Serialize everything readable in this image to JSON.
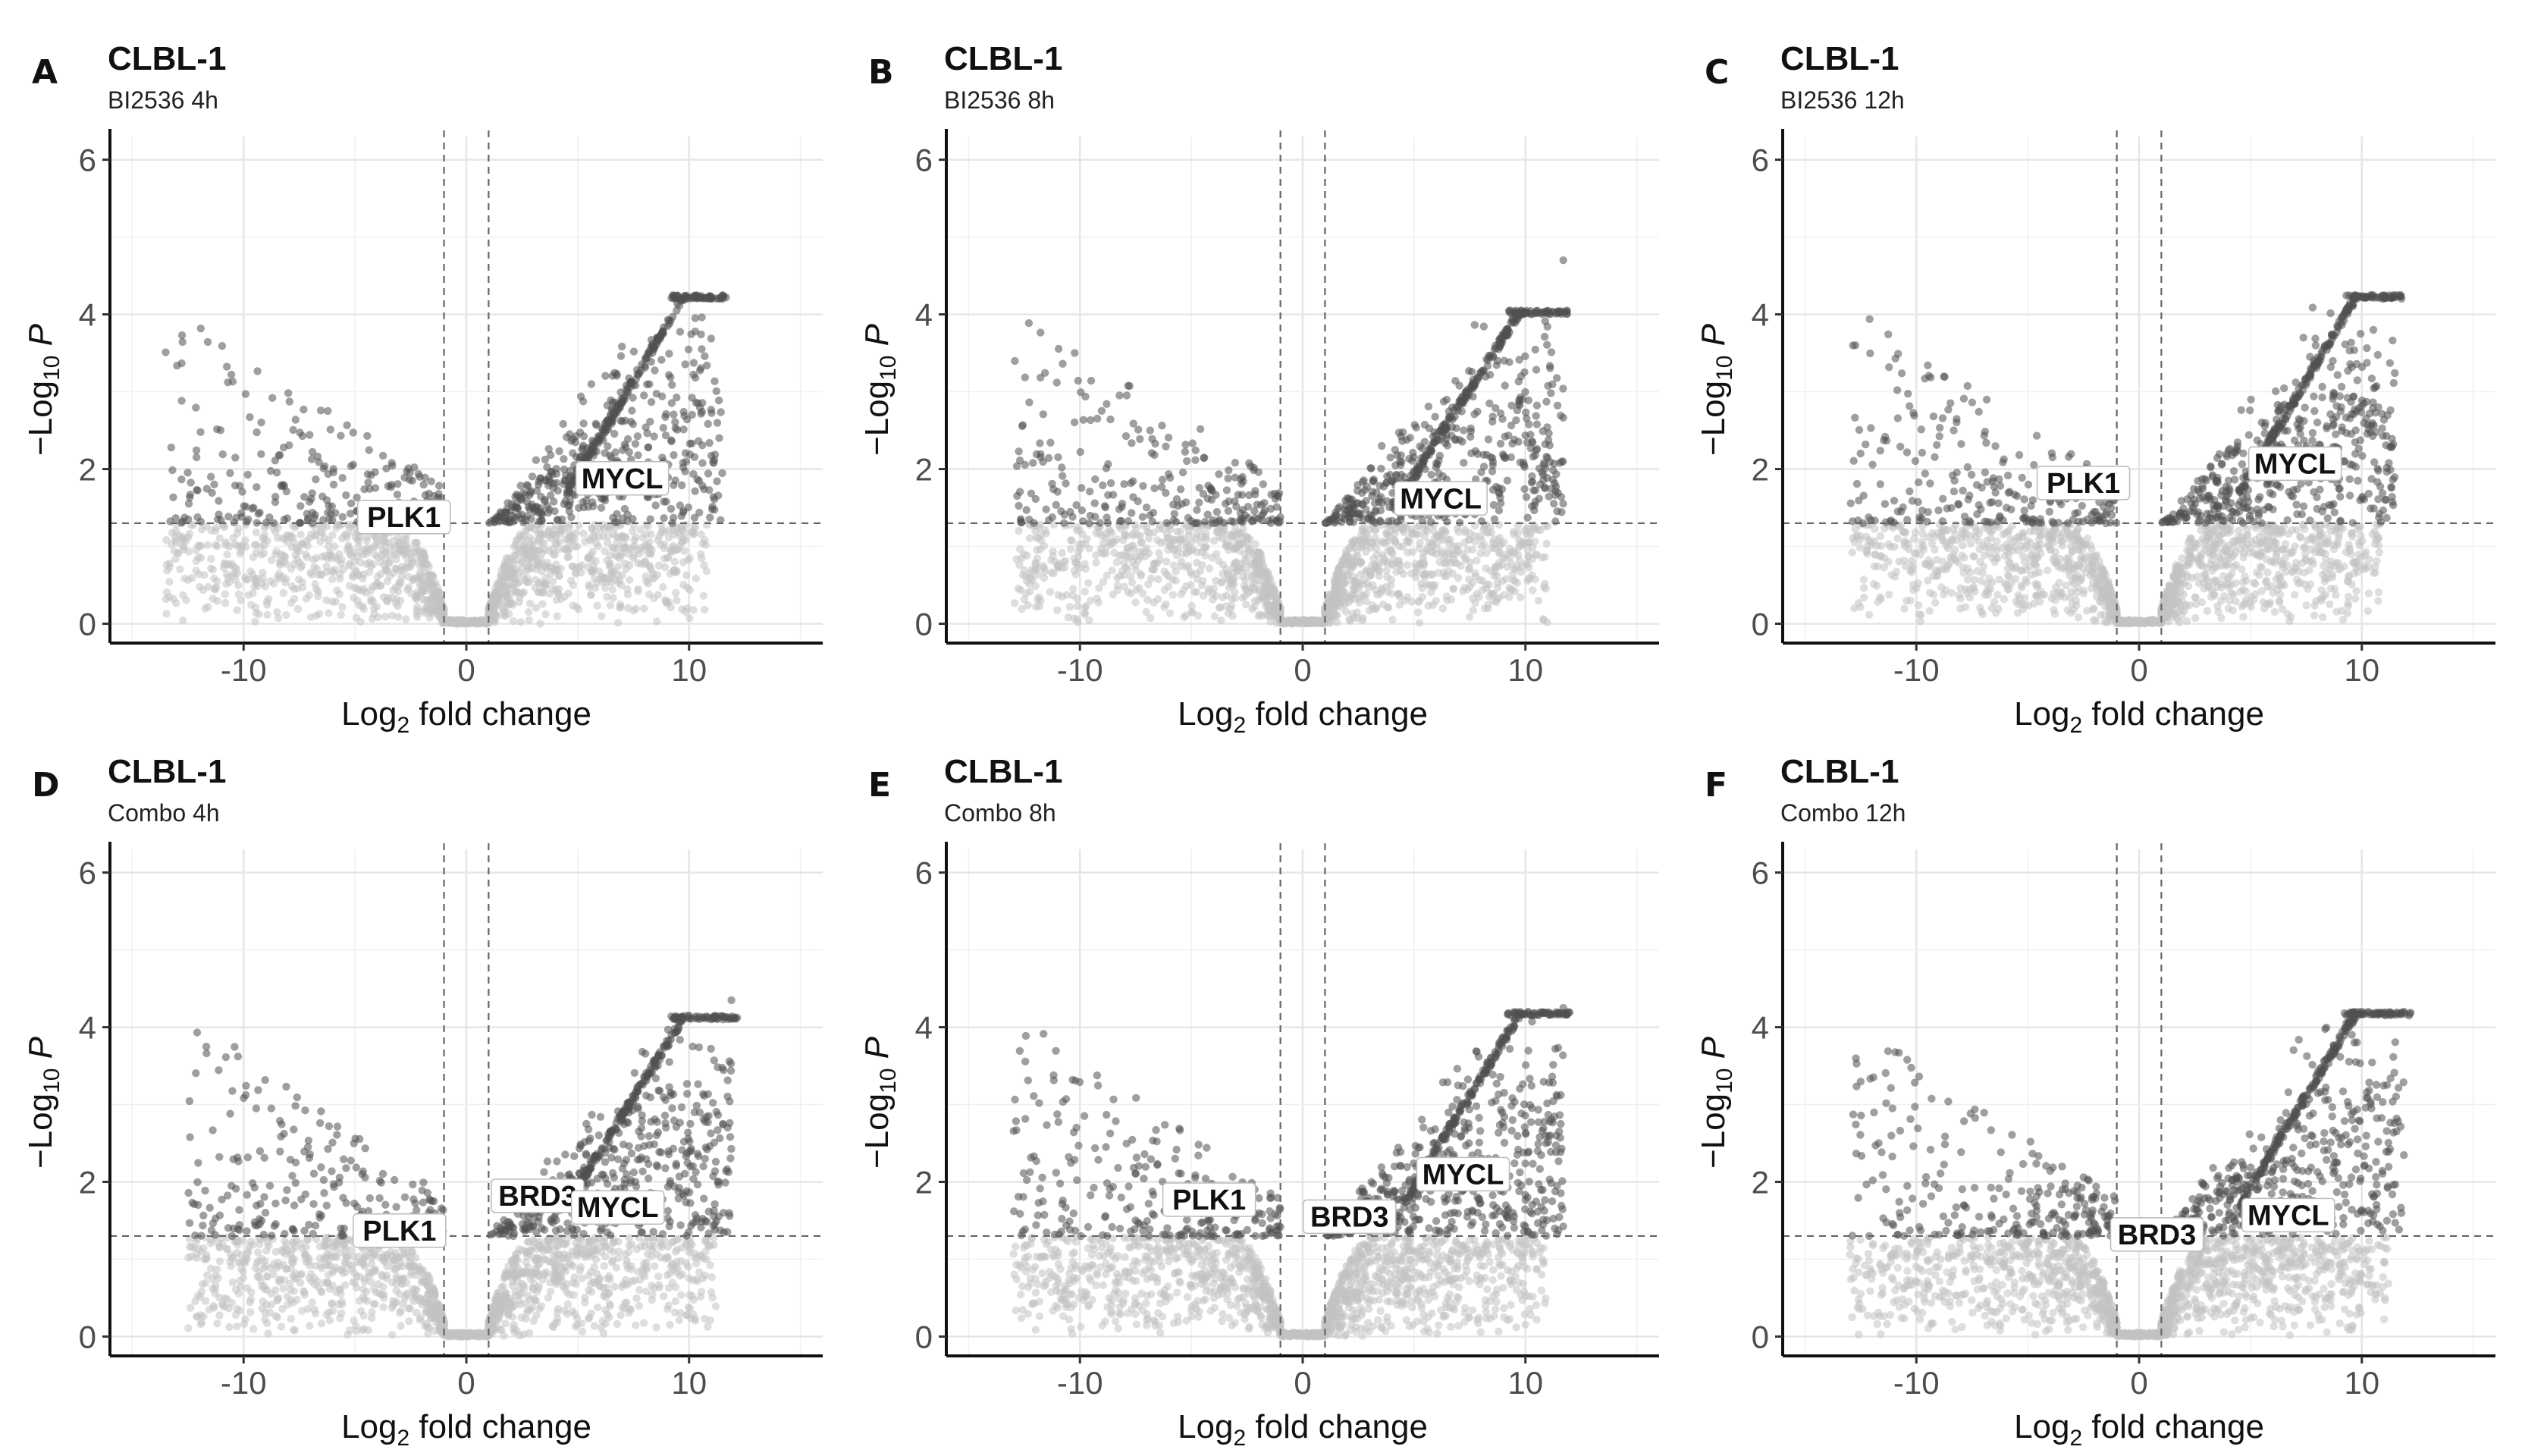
{
  "chart_data": [
    {
      "type": "scatter",
      "panel_letter": "A",
      "title": "CLBL-1",
      "subtitle": "BI2536 4h",
      "xlabel": "Log2 fold change",
      "ylabel": "−Log10 P",
      "xlim": [
        -16,
        16
      ],
      "ylim": [
        -0.25,
        6.3
      ],
      "x_ticks": [
        "-10",
        "0",
        "10"
      ],
      "y_ticks": [
        "0",
        "2",
        "4",
        "6"
      ],
      "fc_cutoff": 1,
      "p_cutoff": 1.3,
      "plateau": 4.25,
      "neg_min": -13.5,
      "pos_max": 11.8,
      "max_point": 4.2,
      "genes": [
        {
          "label": "PLK1",
          "x": -2.8,
          "y": 1.38
        },
        {
          "label": "MYCL",
          "x": 7.0,
          "y": 1.88
        }
      ]
    },
    {
      "type": "scatter",
      "panel_letter": "B",
      "title": "CLBL-1",
      "subtitle": "BI2536 8h",
      "xlabel": "Log2 fold change",
      "ylabel": "−Log10 P",
      "xlim": [
        -16,
        16
      ],
      "ylim": [
        -0.25,
        6.3
      ],
      "x_ticks": [
        "-10",
        "0",
        "10"
      ],
      "y_ticks": [
        "0",
        "2",
        "4",
        "6"
      ],
      "fc_cutoff": 1,
      "p_cutoff": 1.3,
      "plateau": 4.05,
      "neg_min": -13.0,
      "pos_max": 12.0,
      "max_point": 4.7,
      "genes": [
        {
          "label": "MYCL",
          "x": 6.2,
          "y": 1.62
        }
      ]
    },
    {
      "type": "scatter",
      "panel_letter": "C",
      "title": "CLBL-1",
      "subtitle": "BI2536 12h",
      "xlabel": "Log2 fold change",
      "ylabel": "−Log10 P",
      "xlim": [
        -16,
        16
      ],
      "ylim": [
        -0.25,
        6.3
      ],
      "x_ticks": [
        "-10",
        "0",
        "10"
      ],
      "y_ticks": [
        "0",
        "2",
        "4",
        "6"
      ],
      "fc_cutoff": 1,
      "p_cutoff": 1.3,
      "plateau": 4.25,
      "neg_min": -13.0,
      "pos_max": 11.8,
      "max_point": 4.25,
      "genes": [
        {
          "label": "PLK1",
          "x": -2.5,
          "y": 1.82
        },
        {
          "label": "MYCL",
          "x": 7.0,
          "y": 2.07
        }
      ]
    },
    {
      "type": "scatter",
      "panel_letter": "D",
      "title": "CLBL-1",
      "subtitle": "Combo 4h",
      "xlabel": "Log2 fold change",
      "ylabel": "−Log10 P",
      "xlim": [
        -16,
        16
      ],
      "ylim": [
        -0.25,
        6.3
      ],
      "x_ticks": [
        "-10",
        "0",
        "10"
      ],
      "y_ticks": [
        "0",
        "2",
        "4",
        "6"
      ],
      "fc_cutoff": 1,
      "p_cutoff": 1.3,
      "plateau": 4.15,
      "neg_min": -12.5,
      "pos_max": 12.2,
      "max_point": 4.35,
      "genes": [
        {
          "label": "PLK1",
          "x": -3.0,
          "y": 1.37
        },
        {
          "label": "BRD3",
          "x": 3.2,
          "y": 1.82
        },
        {
          "label": "MYCL",
          "x": 6.8,
          "y": 1.67
        }
      ]
    },
    {
      "type": "scatter",
      "panel_letter": "E",
      "title": "CLBL-1",
      "subtitle": "Combo 8h",
      "xlabel": "Log2 fold change",
      "ylabel": "−Log10 P",
      "xlim": [
        -16,
        16
      ],
      "ylim": [
        -0.25,
        6.3
      ],
      "x_ticks": [
        "-10",
        "0",
        "10"
      ],
      "y_ticks": [
        "0",
        "2",
        "4",
        "6"
      ],
      "fc_cutoff": 1,
      "p_cutoff": 1.3,
      "plateau": 4.2,
      "neg_min": -13.0,
      "pos_max": 12.0,
      "max_point": 4.25,
      "genes": [
        {
          "label": "PLK1",
          "x": -4.2,
          "y": 1.77
        },
        {
          "label": "BRD3",
          "x": 2.1,
          "y": 1.55
        },
        {
          "label": "MYCL",
          "x": 7.2,
          "y": 2.1
        }
      ]
    },
    {
      "type": "scatter",
      "panel_letter": "F",
      "title": "CLBL-1",
      "subtitle": "Combo 12h",
      "xlabel": "Log2 fold change",
      "ylabel": "−Log10 P",
      "xlim": [
        -16,
        16
      ],
      "ylim": [
        -0.25,
        6.3
      ],
      "x_ticks": [
        "-10",
        "0",
        "10"
      ],
      "y_ticks": [
        "0",
        "2",
        "4",
        "6"
      ],
      "fc_cutoff": 1,
      "p_cutoff": 1.3,
      "plateau": 4.2,
      "neg_min": -13.0,
      "pos_max": 12.2,
      "max_point": 4.2,
      "genes": [
        {
          "label": "BRD3",
          "x": 0.8,
          "y": 1.32
        },
        {
          "label": "MYCL",
          "x": 6.7,
          "y": 1.57
        }
      ]
    }
  ]
}
